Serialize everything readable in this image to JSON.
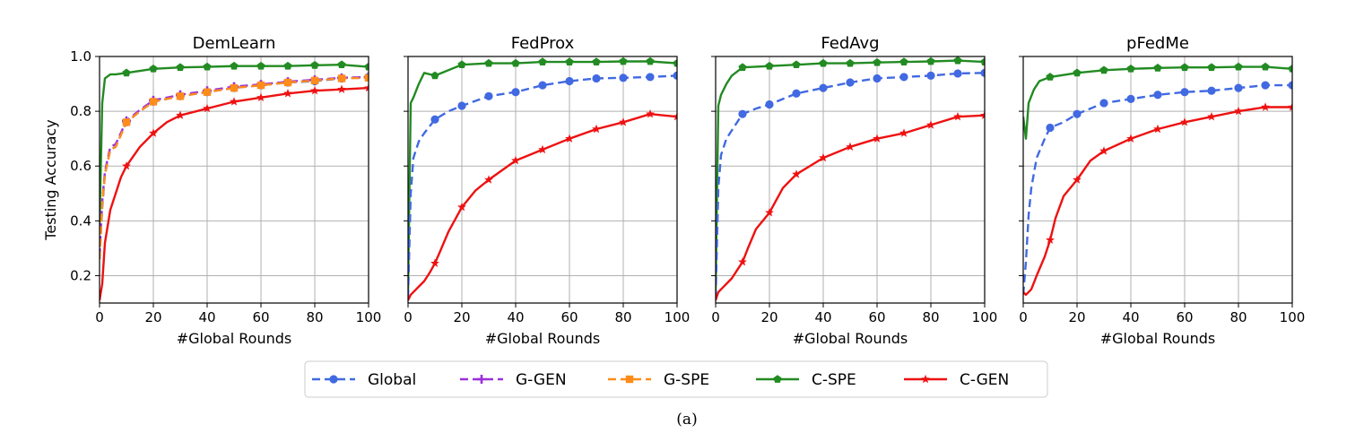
{
  "figure_caption": "(a)",
  "legend": [
    {
      "key": "global",
      "label": "Global"
    },
    {
      "key": "ggen",
      "label": "G-GEN"
    },
    {
      "key": "gspe",
      "label": "G-SPE"
    },
    {
      "key": "cspe",
      "label": "C-SPE"
    },
    {
      "key": "cgen",
      "label": "C-GEN"
    }
  ],
  "series_styles": {
    "global": {
      "color": "#4169e1",
      "dash": "9 5",
      "marker": "circle"
    },
    "ggen": {
      "color": "#9b30d9",
      "dash": "9 5",
      "marker": "plus"
    },
    "gspe": {
      "color": "#ff8c1a",
      "dash": "9 5",
      "marker": "square"
    },
    "cspe": {
      "color": "#228b22",
      "dash": "",
      "marker": "pentagon"
    },
    "cgen": {
      "color": "#ee1111",
      "dash": "",
      "marker": "star"
    }
  },
  "chart_data": [
    {
      "type": "line",
      "title": "DemLearn",
      "xlabel": "#Global Rounds",
      "ylabel": "Testing Accuracy",
      "xlim": [
        0,
        100
      ],
      "ylim": [
        0.1,
        1.0
      ],
      "xticks": [
        "0",
        "20",
        "40",
        "60",
        "80",
        "100"
      ],
      "yticks": [
        "0.2",
        "0.4",
        "0.6",
        "0.8",
        "1.0"
      ],
      "grid": true,
      "series": [
        {
          "key": "cspe",
          "name": "C-SPE",
          "x": [
            0,
            1,
            2,
            4,
            6,
            10,
            20,
            30,
            40,
            50,
            60,
            70,
            80,
            90,
            100
          ],
          "y": [
            0.38,
            0.83,
            0.92,
            0.935,
            0.935,
            0.94,
            0.955,
            0.96,
            0.962,
            0.965,
            0.965,
            0.965,
            0.968,
            0.97,
            0.962
          ]
        },
        {
          "key": "global",
          "name": "Global",
          "x": [
            0,
            1,
            2,
            4,
            6,
            10,
            15,
            20,
            30,
            40,
            50,
            60,
            70,
            80,
            90,
            100
          ],
          "y": [
            0.26,
            0.45,
            0.57,
            0.66,
            0.67,
            0.76,
            0.8,
            0.835,
            0.855,
            0.87,
            0.885,
            0.895,
            0.905,
            0.91,
            0.92,
            0.925
          ]
        },
        {
          "key": "ggen",
          "name": "G-GEN",
          "x": [
            0,
            1,
            2,
            4,
            6,
            10,
            15,
            20,
            30,
            40,
            50,
            60,
            70,
            80,
            90,
            100
          ],
          "y": [
            0.27,
            0.47,
            0.58,
            0.67,
            0.68,
            0.765,
            0.805,
            0.84,
            0.86,
            0.875,
            0.89,
            0.898,
            0.908,
            0.915,
            0.922,
            0.925
          ]
        },
        {
          "key": "gspe",
          "name": "G-SPE",
          "x": [
            0,
            1,
            2,
            4,
            6,
            10,
            15,
            20,
            30,
            40,
            50,
            60,
            70,
            80,
            90,
            100
          ],
          "y": [
            0.26,
            0.46,
            0.57,
            0.66,
            0.67,
            0.76,
            0.8,
            0.835,
            0.855,
            0.87,
            0.885,
            0.895,
            0.905,
            0.912,
            0.92,
            0.922
          ]
        },
        {
          "key": "cgen",
          "name": "C-GEN",
          "x": [
            0,
            1,
            2,
            4,
            6,
            8,
            10,
            15,
            20,
            25,
            30,
            40,
            50,
            60,
            70,
            80,
            90,
            100
          ],
          "y": [
            0.11,
            0.17,
            0.32,
            0.44,
            0.5,
            0.56,
            0.6,
            0.67,
            0.72,
            0.76,
            0.785,
            0.81,
            0.835,
            0.85,
            0.865,
            0.875,
            0.88,
            0.885
          ]
        }
      ]
    },
    {
      "type": "line",
      "title": "FedProx",
      "xlabel": "#Global Rounds",
      "ylabel": "",
      "xlim": [
        0,
        100
      ],
      "ylim": [
        0.1,
        1.0
      ],
      "xticks": [
        "0",
        "20",
        "40",
        "60",
        "80",
        "100"
      ],
      "yticks": [],
      "grid": true,
      "series": [
        {
          "key": "cspe",
          "name": "C-SPE",
          "x": [
            0,
            1,
            2,
            4,
            6,
            10,
            20,
            30,
            40,
            50,
            60,
            70,
            80,
            90,
            100
          ],
          "y": [
            0.15,
            0.83,
            0.85,
            0.9,
            0.94,
            0.93,
            0.97,
            0.975,
            0.975,
            0.98,
            0.98,
            0.98,
            0.982,
            0.982,
            0.975
          ]
        },
        {
          "key": "global",
          "name": "Global",
          "x": [
            0,
            1,
            2,
            4,
            6,
            10,
            15,
            20,
            30,
            40,
            50,
            60,
            70,
            80,
            90,
            100
          ],
          "y": [
            0.12,
            0.5,
            0.63,
            0.69,
            0.72,
            0.77,
            0.8,
            0.82,
            0.855,
            0.87,
            0.895,
            0.91,
            0.92,
            0.922,
            0.925,
            0.93
          ]
        },
        {
          "key": "cgen",
          "name": "C-GEN",
          "x": [
            0,
            1,
            3,
            6,
            8,
            10,
            12,
            15,
            20,
            25,
            30,
            40,
            50,
            60,
            70,
            80,
            90,
            100
          ],
          "y": [
            0.11,
            0.13,
            0.15,
            0.18,
            0.21,
            0.245,
            0.29,
            0.36,
            0.45,
            0.51,
            0.55,
            0.62,
            0.66,
            0.7,
            0.735,
            0.76,
            0.79,
            0.78
          ]
        }
      ]
    },
    {
      "type": "line",
      "title": "FedAvg",
      "xlabel": "#Global Rounds",
      "ylabel": "",
      "xlim": [
        0,
        100
      ],
      "ylim": [
        0.1,
        1.0
      ],
      "xticks": [
        "0",
        "20",
        "40",
        "60",
        "80",
        "100"
      ],
      "yticks": [],
      "grid": true,
      "series": [
        {
          "key": "cspe",
          "name": "C-SPE",
          "x": [
            0,
            1,
            2,
            4,
            6,
            10,
            20,
            30,
            40,
            50,
            60,
            70,
            80,
            90,
            100
          ],
          "y": [
            0.15,
            0.82,
            0.86,
            0.9,
            0.93,
            0.96,
            0.965,
            0.97,
            0.975,
            0.975,
            0.978,
            0.98,
            0.982,
            0.985,
            0.98
          ]
        },
        {
          "key": "global",
          "name": "Global",
          "x": [
            0,
            1,
            2,
            4,
            6,
            10,
            15,
            20,
            30,
            40,
            50,
            60,
            70,
            80,
            90,
            100
          ],
          "y": [
            0.12,
            0.52,
            0.64,
            0.7,
            0.73,
            0.79,
            0.81,
            0.825,
            0.865,
            0.885,
            0.905,
            0.92,
            0.925,
            0.93,
            0.938,
            0.94
          ]
        },
        {
          "key": "cgen",
          "name": "C-GEN",
          "x": [
            0,
            1,
            3,
            6,
            8,
            10,
            12,
            15,
            20,
            25,
            30,
            40,
            50,
            60,
            70,
            80,
            90,
            100
          ],
          "y": [
            0.11,
            0.14,
            0.16,
            0.19,
            0.22,
            0.25,
            0.3,
            0.37,
            0.43,
            0.52,
            0.57,
            0.63,
            0.67,
            0.7,
            0.72,
            0.75,
            0.78,
            0.785
          ]
        }
      ]
    },
    {
      "type": "line",
      "title": "pFedMe",
      "xlabel": "#Global Rounds",
      "ylabel": "",
      "xlim": [
        0,
        100
      ],
      "ylim": [
        0.1,
        1.0
      ],
      "xticks": [
        "0",
        "20",
        "40",
        "60",
        "80",
        "100"
      ],
      "yticks": [],
      "grid": true,
      "series": [
        {
          "key": "cspe",
          "name": "C-SPE",
          "x": [
            0,
            1,
            2,
            4,
            6,
            10,
            20,
            30,
            40,
            50,
            60,
            70,
            80,
            90,
            100
          ],
          "y": [
            0.78,
            0.7,
            0.83,
            0.88,
            0.91,
            0.925,
            0.94,
            0.95,
            0.955,
            0.958,
            0.96,
            0.96,
            0.962,
            0.962,
            0.955
          ]
        },
        {
          "key": "global",
          "name": "Global",
          "x": [
            0,
            1,
            2,
            3,
            5,
            8,
            10,
            15,
            20,
            30,
            40,
            50,
            60,
            70,
            80,
            90,
            100
          ],
          "y": [
            0.13,
            0.25,
            0.42,
            0.52,
            0.63,
            0.7,
            0.74,
            0.76,
            0.79,
            0.83,
            0.845,
            0.86,
            0.87,
            0.875,
            0.885,
            0.895,
            0.895
          ]
        },
        {
          "key": "cgen",
          "name": "C-GEN",
          "x": [
            0,
            1,
            3,
            5,
            8,
            10,
            12,
            15,
            20,
            25,
            30,
            40,
            50,
            60,
            70,
            80,
            90,
            100
          ],
          "y": [
            0.14,
            0.13,
            0.15,
            0.2,
            0.27,
            0.33,
            0.41,
            0.49,
            0.55,
            0.62,
            0.655,
            0.7,
            0.735,
            0.76,
            0.78,
            0.8,
            0.815,
            0.815
          ]
        }
      ]
    }
  ]
}
